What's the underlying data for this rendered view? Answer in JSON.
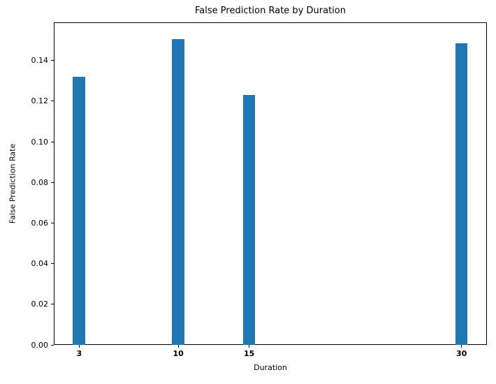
{
  "figure": {
    "background": "#ffffff",
    "text_color": "#000000",
    "axis_color": "#000000"
  },
  "chart_data": {
    "type": "bar",
    "title": "False Prediction Rate by Duration",
    "xlabel": "Duration",
    "ylabel": "False Prediction Rate",
    "x": [
      3,
      10,
      15,
      30
    ],
    "xtick_labels": [
      "3",
      "10",
      "15",
      "30"
    ],
    "values": [
      0.132,
      0.1506,
      0.1229,
      0.1485
    ],
    "bar_color": "#1f77b4",
    "bar_width_units": 0.875,
    "xlim": [
      1.21,
      31.79
    ],
    "ylim": [
      0,
      0.1588
    ],
    "yticks": [
      0.0,
      0.02,
      0.04,
      0.06,
      0.08,
      0.1,
      0.12,
      0.14
    ],
    "ytick_labels": [
      "0.00",
      "0.02",
      "0.04",
      "0.06",
      "0.08",
      "0.10",
      "0.12",
      "0.14"
    ],
    "grid": false,
    "legend": "none",
    "xtick_label_weight": "bold"
  }
}
